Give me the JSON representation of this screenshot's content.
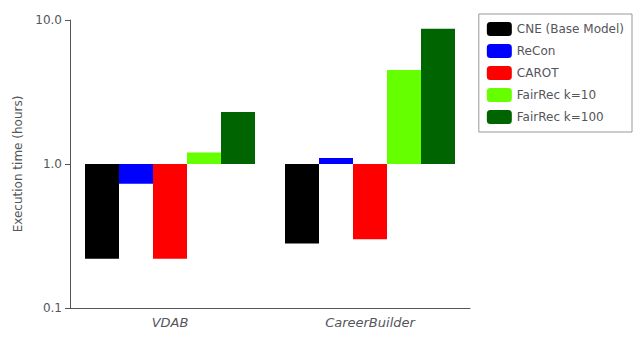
{
  "chart_data": {
    "type": "bar",
    "categories": [
      "VDAB",
      "CareerBuilder"
    ],
    "series": [
      {
        "name": "CNE (Base Model)",
        "color": "#000000",
        "values": [
          0.22,
          0.28
        ]
      },
      {
        "name": "ReCon",
        "color": "#0000ff",
        "values": [
          0.73,
          1.1
        ]
      },
      {
        "name": "CAROT",
        "color": "#ff0000",
        "values": [
          0.22,
          0.3
        ]
      },
      {
        "name": "FairRec k=10",
        "color": "#66ff00",
        "values": [
          1.2,
          4.5
        ]
      },
      {
        "name": "FairRec k=100",
        "color": "#006400",
        "values": [
          2.3,
          8.7
        ]
      }
    ],
    "ylabel": "Execution time (hours)",
    "log": "y",
    "ylim": [
      0.1,
      10.0
    ],
    "yticks": [
      0.1,
      {
        "value": 1.0,
        "label": "1.0"
      },
      {
        "value": 10.0,
        "label": "10.0"
      }
    ],
    "grid": false,
    "legend": "right"
  }
}
